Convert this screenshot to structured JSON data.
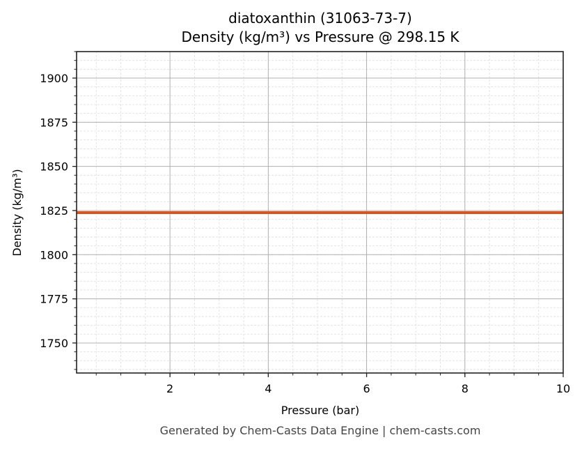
{
  "title": {
    "line1": "diatoxanthin (31063-73-7)",
    "line2": "Density (kg/m³) vs Pressure @ 298.15 K"
  },
  "footer": "Generated by Chem-Casts Data Engine | chem-casts.com",
  "colors": {
    "line": "#d9541e",
    "major_grid": "#b0b0b0",
    "minor_grid": "#dddddd",
    "axes": "#222222"
  },
  "chart_data": {
    "type": "line",
    "title": "diatoxanthin (31063-73-7)\nDensity (kg/m³) vs Pressure @ 298.15 K",
    "xlabel": "Pressure (bar)",
    "ylabel": "Density (kg/m³)",
    "xlim": [
      0.1,
      10
    ],
    "ylim": [
      1733,
      1915
    ],
    "x_ticks": [
      2,
      4,
      6,
      8,
      10
    ],
    "x_tick_labels": [
      "2",
      "4",
      "6",
      "8",
      "10"
    ],
    "y_ticks": [
      1750,
      1775,
      1800,
      1825,
      1850,
      1875,
      1900
    ],
    "y_tick_labels": [
      "1750",
      "1775",
      "1800",
      "1825",
      "1850",
      "1875",
      "1900"
    ],
    "grid": {
      "major": true,
      "minor": true
    },
    "legend": null,
    "series": [
      {
        "name": "Density",
        "color": "#d9541e",
        "x": [
          0.1,
          1,
          2,
          3,
          4,
          5,
          6,
          7,
          8,
          9,
          10
        ],
        "values": [
          1823.8,
          1823.8,
          1823.8,
          1823.8,
          1823.8,
          1823.8,
          1823.8,
          1823.8,
          1823.8,
          1823.8,
          1823.8
        ]
      }
    ]
  }
}
